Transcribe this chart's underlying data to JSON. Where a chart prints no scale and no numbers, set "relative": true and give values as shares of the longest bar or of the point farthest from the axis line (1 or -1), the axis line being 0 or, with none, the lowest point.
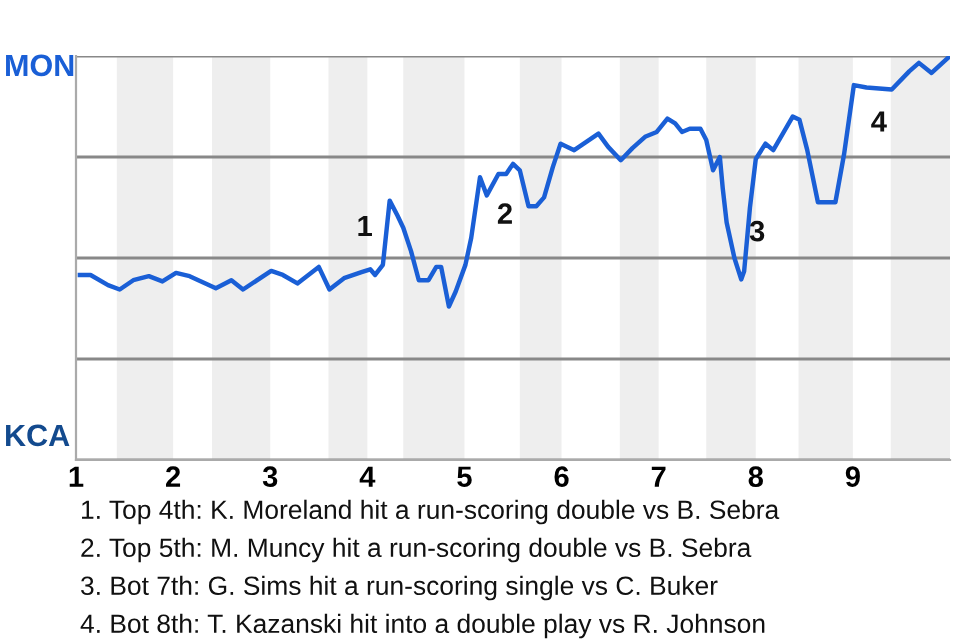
{
  "chart_data": {
    "type": "line",
    "relative": true,
    "x": [
      1.04,
      1.15,
      1.33,
      1.45,
      1.59,
      1.75,
      1.89,
      2.03,
      2.17,
      2.44,
      2.6,
      2.72,
      3.01,
      3.13,
      3.28,
      3.5,
      3.61,
      3.76,
      3.94,
      4.03,
      4.08,
      4.16,
      4.23,
      4.31,
      4.37,
      4.45,
      4.53,
      4.63,
      4.71,
      4.76,
      4.84,
      4.91,
      5.01,
      5.07,
      5.16,
      5.23,
      5.35,
      5.43,
      5.5,
      5.57,
      5.66,
      5.74,
      5.82,
      5.91,
      5.99,
      6.13,
      6.38,
      6.48,
      6.61,
      6.73,
      6.86,
      6.98,
      7.09,
      7.17,
      7.24,
      7.32,
      7.43,
      7.49,
      7.56,
      7.63,
      7.66,
      7.7,
      7.78,
      7.85,
      7.88,
      7.94,
      8,
      8.1,
      8.18,
      8.38,
      8.45,
      8.53,
      8.64,
      8.82,
      8.91,
      9.01,
      9.14,
      9.4,
      9.58,
      9.68,
      9.81,
      10
    ],
    "series": [
      {
        "color": "#1a5fd6",
        "values": [
          0.458,
          0.458,
          0.433,
          0.422,
          0.445,
          0.455,
          0.442,
          0.463,
          0.455,
          0.425,
          0.445,
          0.422,
          0.468,
          0.458,
          0.437,
          0.478,
          0.422,
          0.45,
          0.465,
          0.472,
          0.458,
          0.483,
          0.642,
          0.605,
          0.575,
          0.517,
          0.445,
          0.445,
          0.478,
          0.478,
          0.38,
          0.417,
          0.483,
          0.55,
          0.7,
          0.655,
          0.708,
          0.708,
          0.733,
          0.717,
          0.628,
          0.628,
          0.65,
          0.725,
          0.783,
          0.767,
          0.808,
          0.775,
          0.742,
          0.772,
          0.8,
          0.812,
          0.845,
          0.833,
          0.812,
          0.82,
          0.82,
          0.792,
          0.717,
          0.75,
          0.672,
          0.588,
          0.5,
          0.447,
          0.467,
          0.625,
          0.745,
          0.783,
          0.767,
          0.85,
          0.842,
          0.767,
          0.638,
          0.638,
          0.758,
          0.928,
          0.922,
          0.917,
          0.962,
          0.983,
          0.958,
          1
        ]
      }
    ],
    "xlim": [
      1,
      10
    ],
    "xticks": [
      1,
      2,
      3,
      4,
      5,
      6,
      7,
      8,
      9
    ],
    "grid": "y",
    "bands": [
      {
        "axis": "x",
        "from": 1.42,
        "to": 2,
        "color": "#eeeeee"
      },
      {
        "axis": "x",
        "from": 2.4,
        "to": 3,
        "color": "#eeeeee"
      },
      {
        "axis": "x",
        "from": 3.6,
        "to": 4,
        "color": "#eeeeee"
      },
      {
        "axis": "x",
        "from": 4.37,
        "to": 5,
        "color": "#eeeeee"
      },
      {
        "axis": "x",
        "from": 5.57,
        "to": 6,
        "color": "#eeeeee"
      },
      {
        "axis": "x",
        "from": 6.6,
        "to": 7,
        "color": "#eeeeee"
      },
      {
        "axis": "x",
        "from": 7.49,
        "to": 8,
        "color": "#eeeeee"
      },
      {
        "axis": "x",
        "from": 8.44,
        "to": 9,
        "color": "#eeeeee"
      },
      {
        "axis": "x",
        "from": 9.39,
        "to": 10,
        "color": "#eeeeee"
      }
    ],
    "annotations": [
      "MON",
      "KCA",
      {
        "text": "1",
        "x": 4.23,
        "y": 0.642
      },
      {
        "text": "2",
        "x": 5.16,
        "y": 0.7
      },
      {
        "text": "3",
        "x": 7.7,
        "y": 0.588
      },
      {
        "text": "4",
        "x": 9.01,
        "y": 0.928
      },
      "1. Top 4th: K. Moreland hit a run-scoring double vs B. Sebra",
      "2. Top 5th: M. Muncy hit a run-scoring double vs B. Sebra",
      "3. Bot 7th: G. Sims hit a run-scoring single vs C. Buker",
      "4. Bot 8th: T. Kazanski hit into a double play vs R. Johnson"
    ]
  }
}
